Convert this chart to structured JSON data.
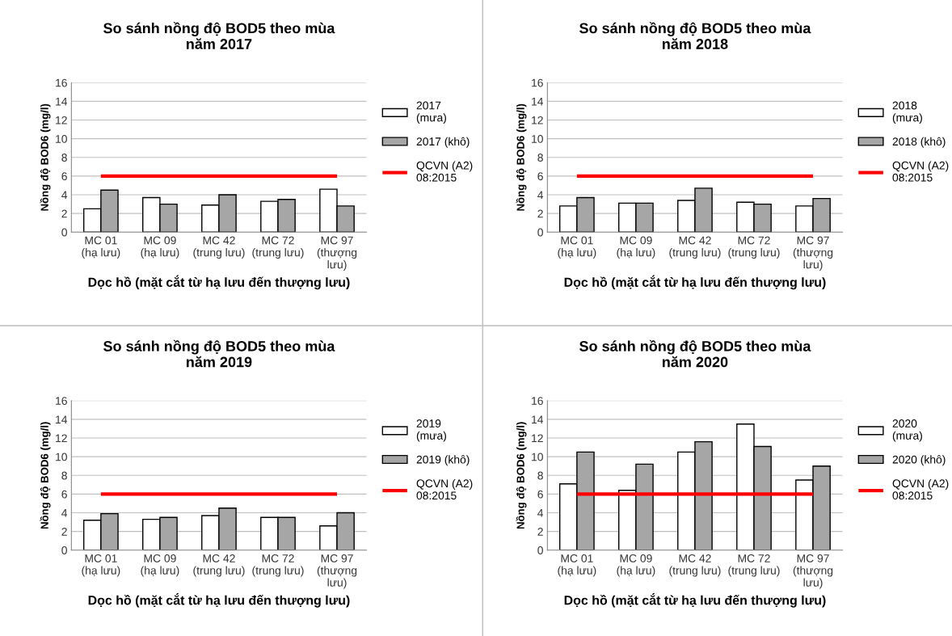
{
  "chart_data": [
    {
      "type": "bar",
      "title": "So sánh nồng độ BOD5 theo mùa\nnăm 2017",
      "xlabel": "Dọc hồ (mặt cắt từ hạ lưu đến thượng lưu)",
      "ylabel": "Nồng độ BOD6 (mg/l)",
      "categories": [
        "MC 01\n(hạ lưu)",
        "MC 09\n(hạ lưu)",
        "MC 42\n(trung lưu)",
        "MC 72\n(trung lưu)",
        "MC 97\n(thượng\nlưu)"
      ],
      "series": [
        {
          "name": "2017\n(mưa)",
          "color": "#ffffff",
          "values": [
            2.5,
            3.7,
            2.9,
            3.3,
            4.6
          ]
        },
        {
          "name": "2017 (khô)",
          "color": "#a6a6a6",
          "values": [
            4.5,
            3.0,
            4.0,
            3.5,
            2.8
          ]
        },
        {
          "name": "QCVN (A2)\n08:2015",
          "color": "#ff0000",
          "type": "line",
          "values": [
            6,
            6,
            6,
            6,
            6
          ]
        }
      ],
      "ylim": [
        0,
        16
      ],
      "yticks": [
        0,
        2,
        4,
        6,
        8,
        10,
        12,
        14,
        16
      ],
      "grid": "y",
      "legend": "right"
    },
    {
      "type": "bar",
      "title": "So sánh nồng độ BOD5 theo mùa\nnăm 2018",
      "xlabel": "Dọc hồ (mặt cắt từ hạ lưu đến thượng lưu)",
      "ylabel": "Nồng độ BOD6 (mg/l)",
      "categories": [
        "MC 01\n(hạ lưu)",
        "MC 09\n(hạ lưu)",
        "MC 42\n(trung lưu)",
        "MC 72\n(trung lưu)",
        "MC 97\n(thượng\nlưu)"
      ],
      "series": [
        {
          "name": "2018\n(mưa)",
          "color": "#ffffff",
          "values": [
            2.8,
            3.1,
            3.4,
            3.2,
            2.8
          ]
        },
        {
          "name": "2018 (khô)",
          "color": "#a6a6a6",
          "values": [
            3.7,
            3.1,
            4.7,
            3.0,
            3.6
          ]
        },
        {
          "name": "QCVN (A2)\n08:2015",
          "color": "#ff0000",
          "type": "line",
          "values": [
            6,
            6,
            6,
            6,
            6
          ]
        }
      ],
      "ylim": [
        0,
        16
      ],
      "yticks": [
        0,
        2,
        4,
        6,
        8,
        10,
        12,
        14,
        16
      ],
      "grid": "y",
      "legend": "right"
    },
    {
      "type": "bar",
      "title": "So sánh nồng độ BOD5 theo mùa\nnăm 2019",
      "xlabel": "Dọc hồ (mặt cắt từ hạ lưu đến thượng lưu)",
      "ylabel": "Nồng độ BOD6 (mg/l)",
      "categories": [
        "MC 01\n(hạ lưu)",
        "MC 09\n(hạ lưu)",
        "MC 42\n(trung lưu)",
        "MC 72\n(trung lưu)",
        "MC 97\n(thượng\nlưu)"
      ],
      "series": [
        {
          "name": "2019\n(mưa)",
          "color": "#ffffff",
          "values": [
            3.2,
            3.3,
            3.7,
            3.5,
            2.6
          ]
        },
        {
          "name": "2019 (khô)",
          "color": "#a6a6a6",
          "values": [
            3.9,
            3.5,
            4.5,
            3.5,
            4.0
          ]
        },
        {
          "name": "QCVN (A2)\n08:2015",
          "color": "#ff0000",
          "type": "line",
          "values": [
            6,
            6,
            6,
            6,
            6
          ]
        }
      ],
      "ylim": [
        0,
        16
      ],
      "yticks": [
        0,
        2,
        4,
        6,
        8,
        10,
        12,
        14,
        16
      ],
      "grid": "y",
      "legend": "right"
    },
    {
      "type": "bar",
      "title": "So sánh nồng độ BOD5 theo mùa\nnăm 2020",
      "xlabel": "Dọc hồ (mặt cắt từ hạ lưu đến thượng lưu)",
      "ylabel": "Nồng độ BOD6 (mg/l)",
      "categories": [
        "MC 01\n(hạ lưu)",
        "MC 09\n(hạ lưu)",
        "MC 42\n(trung lưu)",
        "MC 72\n(trung lưu)",
        "MC 97\n(thượng\nlưu)"
      ],
      "series": [
        {
          "name": "2020\n(mưa)",
          "color": "#ffffff",
          "values": [
            7.1,
            6.4,
            10.5,
            13.5,
            7.5
          ]
        },
        {
          "name": "2020 (khô)",
          "color": "#a6a6a6",
          "values": [
            10.5,
            9.2,
            11.6,
            11.1,
            9.0
          ]
        },
        {
          "name": "QCVN (A2)\n08:2015",
          "color": "#ff0000",
          "type": "line",
          "values": [
            6,
            6,
            6,
            6,
            6
          ]
        }
      ],
      "ylim": [
        0,
        16
      ],
      "yticks": [
        0,
        2,
        4,
        6,
        8,
        10,
        12,
        14,
        16
      ],
      "grid": "y",
      "legend": "right"
    }
  ]
}
